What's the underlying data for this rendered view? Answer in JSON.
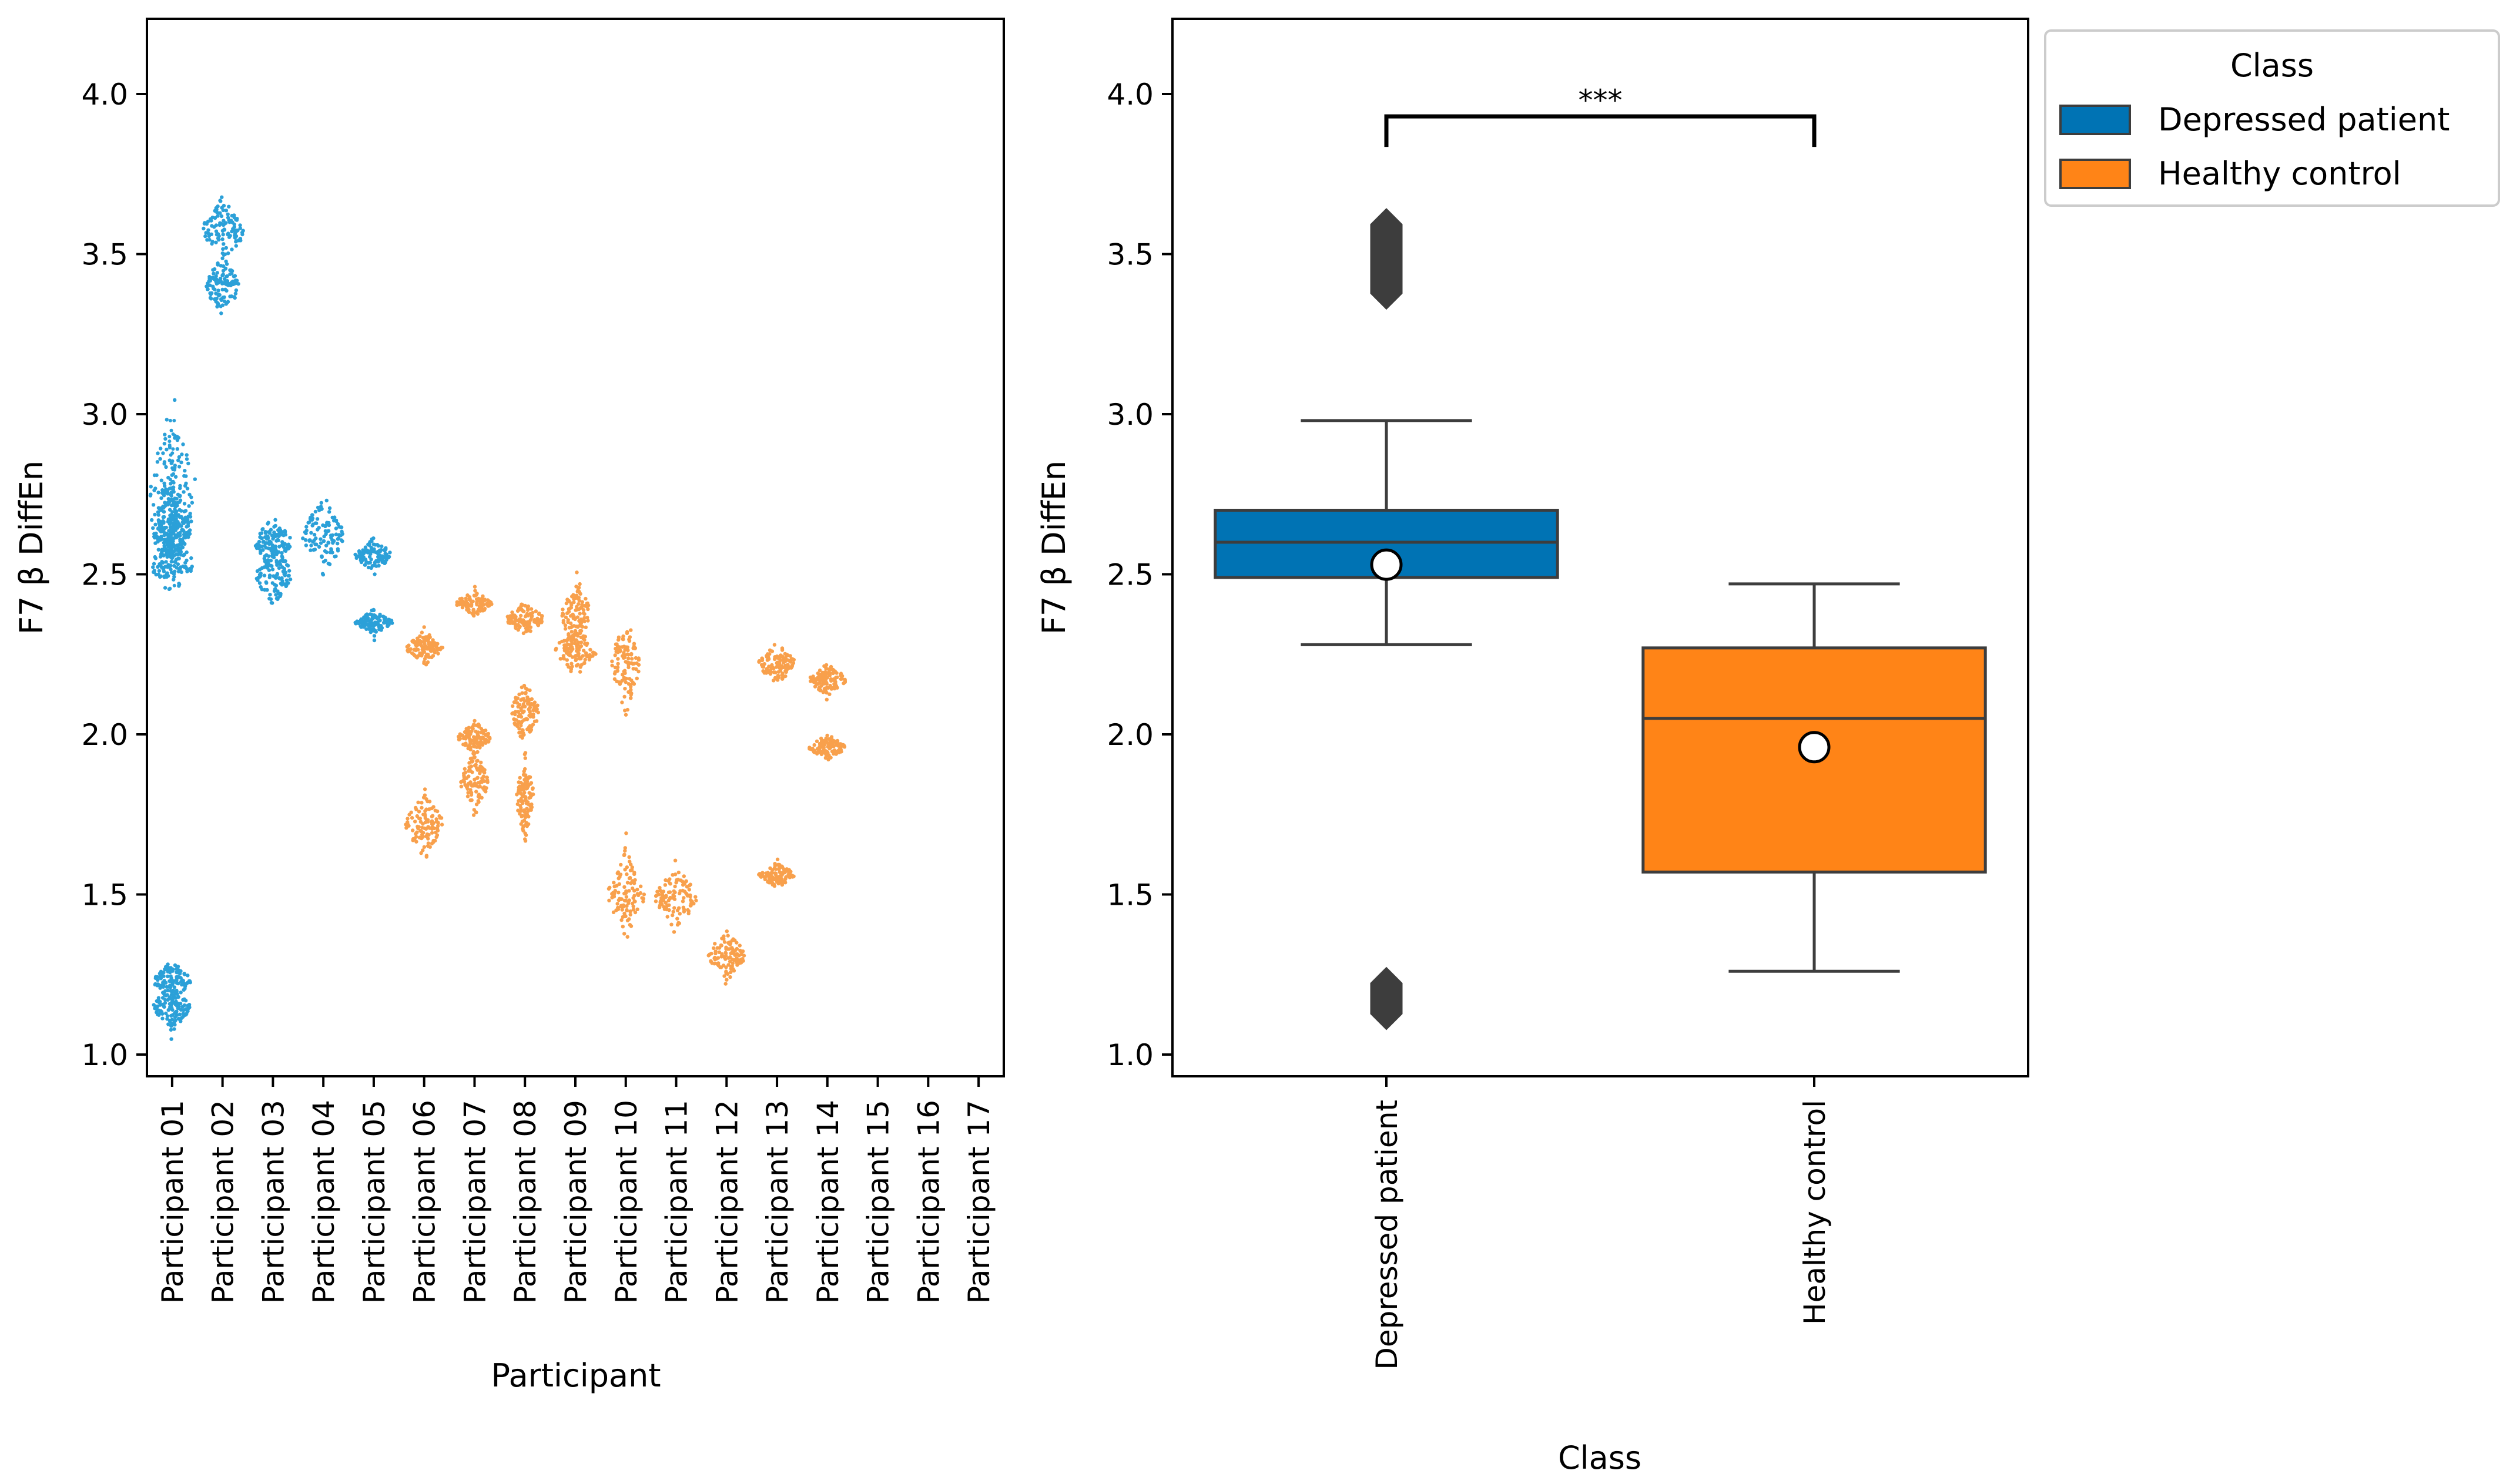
{
  "chart_data": [
    {
      "type": "scatter",
      "subtype": "swarm",
      "xlabel": "Participant",
      "ylabel": "F7  β  DiffEn",
      "ylim": [
        0.95,
        4.25
      ],
      "yticks": [
        1.0,
        1.5,
        2.0,
        2.5,
        3.0,
        3.5,
        4.0
      ],
      "categories": [
        "Participant 01",
        "Participant 02",
        "Participant 03",
        "Participant 04",
        "Participant 05",
        "Participant 06",
        "Participant 07",
        "Participant 08",
        "Participant 09",
        "Participant 10",
        "Participant 11",
        "Participant 12",
        "Participant 13",
        "Participant 14",
        "Participant 15",
        "Participant 16",
        "Participant 17"
      ],
      "series": [
        {
          "class": "Depressed patient",
          "color": "#2ba0d8",
          "clusters": [
            [
              2.78,
              0.1,
              1.0,
              0.13,
              2.28,
              2.98
            ],
            [
              2.66,
              0.05,
              0.9
            ],
            [
              1.15,
              0.03,
              0.8
            ],
            [
              1.23,
              0.025,
              0.8
            ],
            [
              2.53,
              0.04,
              0.9
            ],
            [
              2.62,
              0.04,
              0.8
            ]
          ]
        },
        {
          "class": "Depressed patient",
          "color": "#2ba0d8",
          "clusters": [
            [
              3.57,
              0.04,
              0.9
            ],
            [
              3.4,
              0.04,
              0.7
            ]
          ]
        },
        {
          "class": "Depressed patient",
          "color": "#2ba0d8",
          "clusters": [
            [
              2.6,
              0.03,
              0.8
            ],
            [
              2.5,
              0.04,
              0.8
            ]
          ]
        },
        {
          "class": "Depressed patient",
          "color": "#2ba0d8",
          "clusters": [
            [
              2.62,
              0.05,
              0.9
            ]
          ]
        },
        {
          "class": "Depressed patient",
          "color": "#2ba0d8",
          "clusters": [
            [
              2.56,
              0.02,
              0.8
            ],
            [
              2.35,
              0.015,
              0.8
            ]
          ]
        },
        {
          "class": "Healthy control",
          "color": "#f8a04c",
          "clusters": [
            [
              2.27,
              0.02,
              0.8
            ],
            [
              1.72,
              0.04,
              0.8
            ]
          ]
        },
        {
          "class": "Healthy control",
          "color": "#f8a04c",
          "clusters": [
            [
              2.41,
              0.015,
              0.8
            ],
            [
              1.99,
              0.02,
              0.7
            ],
            [
              1.85,
              0.04,
              0.6
            ]
          ]
        },
        {
          "class": "Healthy control",
          "color": "#f8a04c",
          "clusters": [
            [
              2.36,
              0.02,
              0.8
            ],
            [
              2.07,
              0.04,
              0.6
            ],
            [
              1.8,
              0.05,
              0.4
            ]
          ]
        },
        {
          "class": "Healthy control",
          "color": "#f8a04c",
          "clusters": [
            [
              2.26,
              0.03,
              0.9
            ],
            [
              2.38,
              0.05,
              0.6
            ]
          ]
        },
        {
          "class": "Healthy control",
          "color": "#f8a04c",
          "clusters": [
            [
              2.22,
              0.06,
              0.6
            ],
            [
              1.5,
              0.05,
              0.8
            ]
          ]
        },
        {
          "class": "Healthy control",
          "color": "#f8a04c",
          "clusters": [
            [
              1.49,
              0.04,
              0.9
            ]
          ]
        },
        {
          "class": "Healthy control",
          "color": "#f8a04c",
          "clusters": [
            [
              1.31,
              0.03,
              0.8
            ]
          ]
        },
        {
          "class": "Healthy control",
          "color": "#f8a04c",
          "clusters": [
            [
              2.22,
              0.025,
              0.8
            ],
            [
              1.56,
              0.015,
              0.8
            ]
          ]
        },
        {
          "class": "Healthy control",
          "color": "#f8a04c",
          "clusters": [
            [
              2.17,
              0.02,
              0.8
            ],
            [
              1.96,
              0.015,
              0.8
            ]
          ]
        }
      ]
    },
    {
      "type": "box",
      "xlabel": "Class",
      "ylabel": "F7  β  DiffEn",
      "ylim": [
        0.95,
        4.25
      ],
      "yticks": [
        1.0,
        1.5,
        2.0,
        2.5,
        3.0,
        3.5,
        4.0
      ],
      "categories": [
        "Depressed patient",
        "Healthy control"
      ],
      "boxes": [
        {
          "name": "Depressed patient",
          "color": "#0073b4",
          "q1": 2.49,
          "median": 2.6,
          "q3": 2.7,
          "whisker_low": 2.28,
          "whisker_high": 2.98,
          "mean": 2.53,
          "outliers_ranges": [
            [
              3.33,
              3.64
            ],
            [
              1.08,
              1.27
            ]
          ]
        },
        {
          "name": "Healthy control",
          "color": "#ff8417",
          "q1": 1.57,
          "median": 2.05,
          "q3": 2.27,
          "whisker_low": 1.26,
          "whisker_high": 2.47,
          "mean": 1.96
        }
      ],
      "significance": {
        "label": "***",
        "between": [
          "Depressed patient",
          "Healthy control"
        ],
        "y": 3.93
      }
    }
  ],
  "legend": {
    "title": "Class",
    "placement": "outside-right",
    "items": [
      {
        "label": "Depressed patient",
        "color": "#0073b4"
      },
      {
        "label": "Healthy control",
        "color": "#ff8417"
      }
    ]
  }
}
